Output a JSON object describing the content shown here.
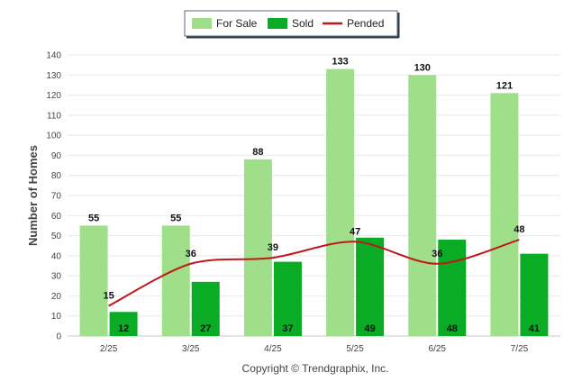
{
  "chart_data": {
    "type": "bar",
    "categories": [
      "2/25",
      "3/25",
      "4/25",
      "5/25",
      "6/25",
      "7/25"
    ],
    "series": [
      {
        "name": "For Sale",
        "type": "bar",
        "color": "#a0df8a",
        "values": [
          55,
          55,
          88,
          133,
          130,
          121
        ]
      },
      {
        "name": "Sold",
        "type": "bar",
        "color": "#0aac26",
        "values": [
          12,
          27,
          37,
          49,
          48,
          41
        ]
      },
      {
        "name": "Pended",
        "type": "line",
        "color": "#c0171c",
        "values": [
          15,
          36,
          39,
          47,
          36,
          48
        ]
      }
    ],
    "ylabel": "Number of Homes",
    "xlabel": "",
    "ylim": [
      0,
      140
    ],
    "yticks": [
      0,
      10,
      20,
      30,
      40,
      50,
      60,
      70,
      80,
      90,
      100,
      110,
      120,
      130,
      140
    ],
    "grid": true,
    "legend_position": "top-center",
    "credit": "Copyright © Trendgraphix, Inc."
  }
}
